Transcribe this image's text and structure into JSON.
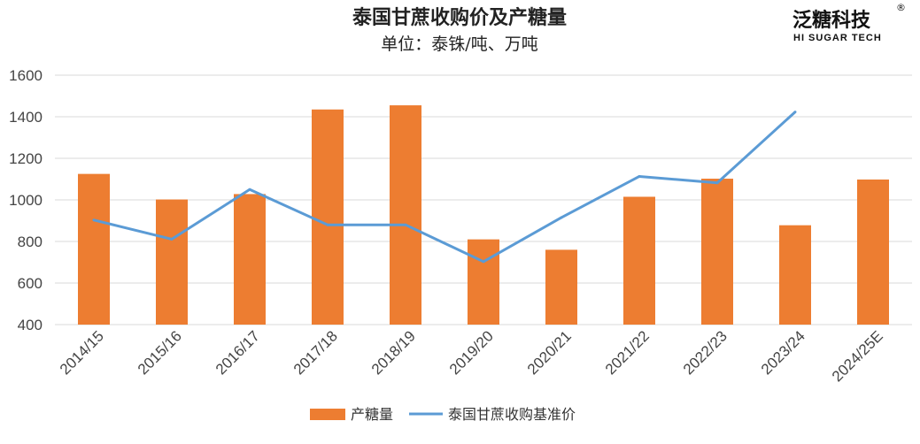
{
  "logo": {
    "cn": "泛糖科技",
    "en": "HI SUGAR TECH",
    "mark": "®"
  },
  "chart_data": {
    "type": "bar",
    "title": "泰国甘蔗收购价及产糖量",
    "subtitle": "单位：泰铢/吨、万吨",
    "categories": [
      "2014/15",
      "2015/16",
      "2016/17",
      "2017/18",
      "2018/19",
      "2019/20",
      "2020/21",
      "2021/22",
      "2022/23",
      "2023/24",
      "2024/25E"
    ],
    "ylim": [
      400,
      1600
    ],
    "yticks": [
      400,
      600,
      800,
      1000,
      1200,
      1400,
      1600
    ],
    "grid": true,
    "legend_position": "bottom",
    "series": [
      {
        "name": "产糖量",
        "type": "bar",
        "color": "#ED7D31",
        "values": [
          1125,
          1002,
          1028,
          1435,
          1455,
          810,
          760,
          1015,
          1102,
          878,
          1098
        ]
      },
      {
        "name": "泰国甘蔗收购基准价",
        "type": "line",
        "color": "#5B9BD5",
        "values": [
          903,
          811,
          1050,
          880,
          880,
          703,
          915,
          1113,
          1082,
          1423,
          null
        ]
      }
    ]
  }
}
